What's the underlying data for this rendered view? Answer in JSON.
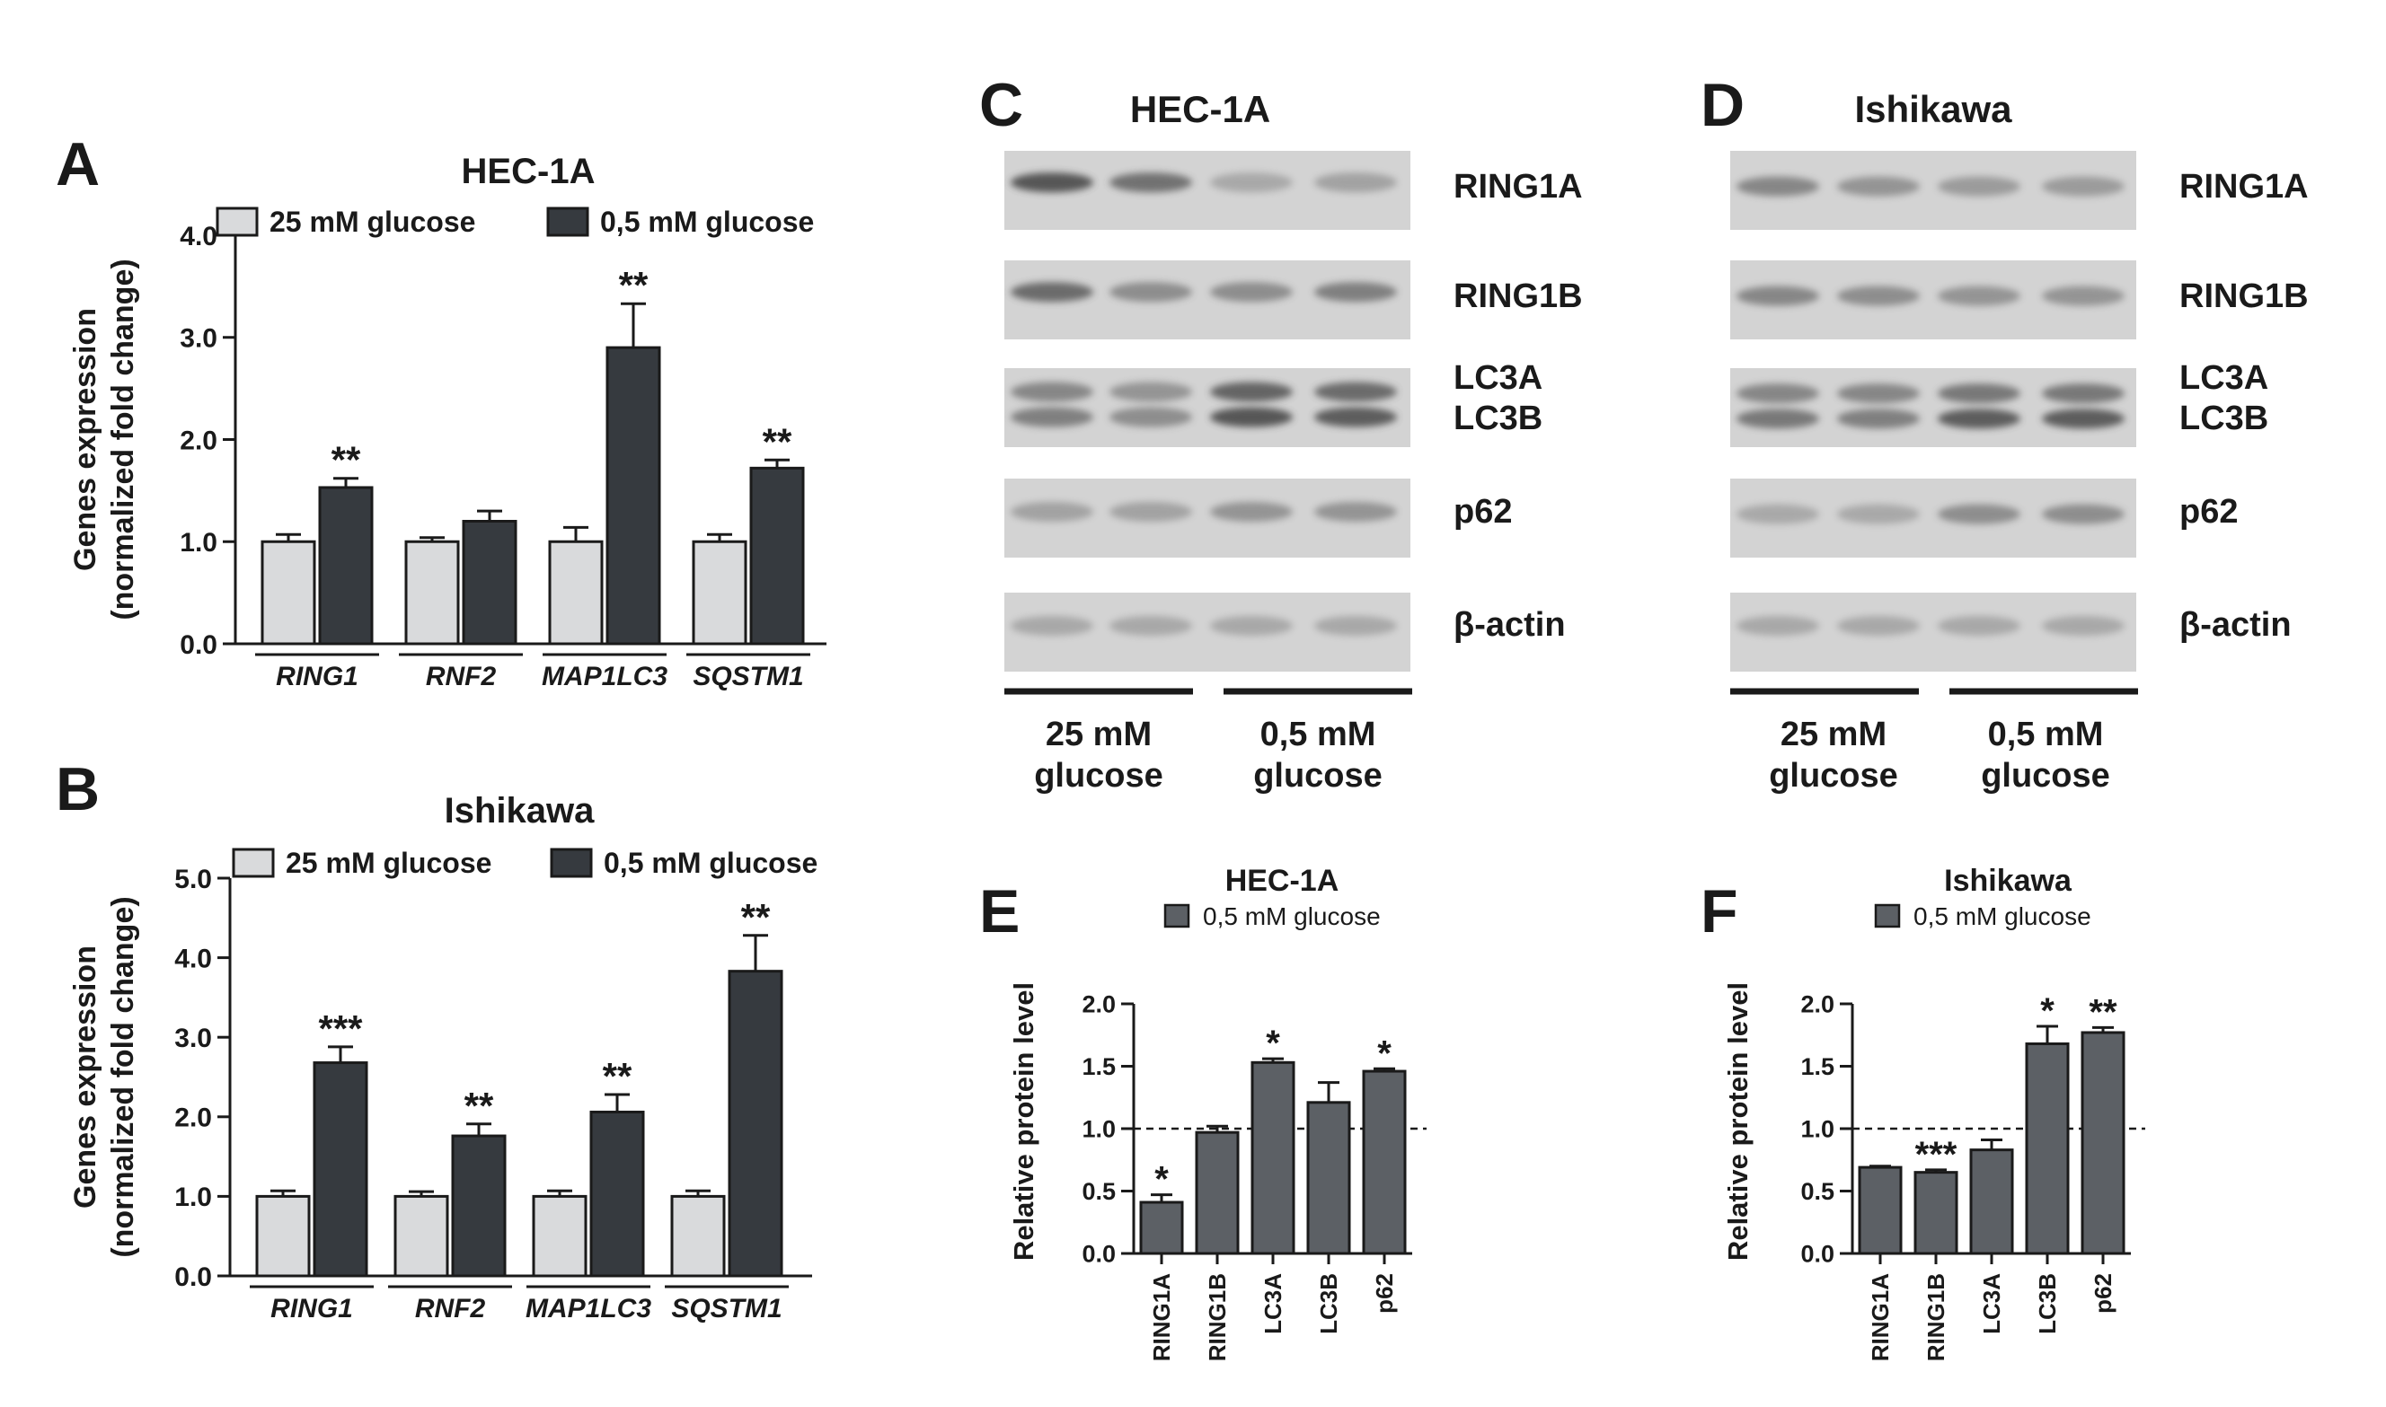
{
  "colors": {
    "light_bar": "#d9dadc",
    "dark_bar": "#363a3f",
    "protein_bar": "#5c6065",
    "blot_bg": "#d3d3d3",
    "band": "#4a4a4a"
  },
  "panels": {
    "A": {
      "letter": "A",
      "title": "HEC-1A"
    },
    "B": {
      "letter": "B",
      "title": "Ishikawa"
    },
    "C": {
      "letter": "C",
      "title": "HEC-1A",
      "bands": [
        "RING1A",
        "RING1B",
        "LC3A",
        "LC3B",
        "p62",
        "β-actin"
      ],
      "groups": [
        [
          "25 mM",
          "glucose"
        ],
        [
          "0,5 mM",
          "glucose"
        ]
      ]
    },
    "D": {
      "letter": "D",
      "title": "Ishikawa",
      "bands": [
        "RING1A",
        "RING1B",
        "LC3A",
        "LC3B",
        "p62",
        "β-actin"
      ],
      "groups": [
        [
          "25 mM",
          "glucose"
        ],
        [
          "0,5 mM",
          "glucose"
        ]
      ]
    },
    "E": {
      "letter": "E",
      "title": "HEC-1A"
    },
    "F": {
      "letter": "F",
      "title": "Ishikawa"
    }
  },
  "chart_data": [
    {
      "panel": "A",
      "type": "bar",
      "title": "HEC-1A",
      "ylabel": [
        "Genes expression",
        "(normalized fold change)"
      ],
      "ylim": [
        0,
        4
      ],
      "yticks": [
        "0.0",
        "1.0",
        "2.0",
        "3.0",
        "4.0"
      ],
      "categories": [
        "RING1",
        "RNF2",
        "MAP1LC3",
        "SQSTM1"
      ],
      "legend": [
        "25 mM glucose",
        "0,5 mM glucose"
      ],
      "series": [
        {
          "name": "25 mM glucose",
          "values": [
            1.0,
            1.0,
            1.0,
            1.0
          ],
          "errors": [
            0.07,
            0.04,
            0.14,
            0.07
          ]
        },
        {
          "name": "0,5 mM glucose",
          "values": [
            1.53,
            1.2,
            2.9,
            1.72
          ],
          "errors": [
            0.09,
            0.1,
            0.43,
            0.08
          ]
        }
      ],
      "significance": [
        "**",
        "",
        "**",
        "**"
      ]
    },
    {
      "panel": "B",
      "type": "bar",
      "title": "Ishikawa",
      "ylabel": [
        "Genes expression",
        "(normalized fold change)"
      ],
      "ylim": [
        0,
        5
      ],
      "yticks": [
        "0.0",
        "1.0",
        "2.0",
        "3.0",
        "4.0",
        "5.0"
      ],
      "categories": [
        "RING1",
        "RNF2",
        "MAP1LC3",
        "SQSTM1"
      ],
      "legend": [
        "25 mM glucose",
        "0,5 mM glucose"
      ],
      "series": [
        {
          "name": "25 mM glucose",
          "values": [
            1.0,
            1.0,
            1.0,
            1.0
          ],
          "errors": [
            0.07,
            0.06,
            0.07,
            0.07
          ]
        },
        {
          "name": "0,5 mM glucose",
          "values": [
            2.68,
            1.76,
            2.06,
            3.83
          ],
          "errors": [
            0.2,
            0.15,
            0.22,
            0.45
          ]
        }
      ],
      "significance": [
        "***",
        "**",
        "**",
        "**"
      ]
    },
    {
      "panel": "E",
      "type": "bar",
      "title": "HEC-1A",
      "ylabel": "Relative protein level",
      "ylim": [
        0,
        2
      ],
      "yticks": [
        "0.0",
        "0.5",
        "1.0",
        "1.5",
        "2.0"
      ],
      "categories": [
        "RING1A",
        "RING1B",
        "LC3A",
        "LC3B",
        "p62"
      ],
      "legend": [
        "0,5 mM glucose"
      ],
      "series": [
        {
          "name": "0,5 mM glucose",
          "values": [
            0.41,
            0.97,
            1.53,
            1.21,
            1.46
          ],
          "errors": [
            0.06,
            0.05,
            0.03,
            0.16,
            0.02
          ]
        }
      ],
      "significance": [
        "*",
        "",
        "*",
        "",
        "*"
      ],
      "reference_line": 1.0
    },
    {
      "panel": "F",
      "type": "bar",
      "title": "Ishikawa",
      "ylabel": "Relative protein level",
      "ylim": [
        0,
        2
      ],
      "yticks": [
        "0.0",
        "0.5",
        "1.0",
        "1.5",
        "2.0"
      ],
      "categories": [
        "RING1A",
        "RING1B",
        "LC3A",
        "LC3B",
        "p62"
      ],
      "legend": [
        "0,5 mM glucose"
      ],
      "series": [
        {
          "name": "0,5 mM glucose",
          "values": [
            0.69,
            0.65,
            0.83,
            1.68,
            1.77
          ],
          "errors": [
            0.01,
            0.02,
            0.08,
            0.14,
            0.04
          ]
        }
      ],
      "significance": [
        "",
        "***",
        "",
        "*",
        "**"
      ],
      "reference_line": 1.0
    }
  ]
}
